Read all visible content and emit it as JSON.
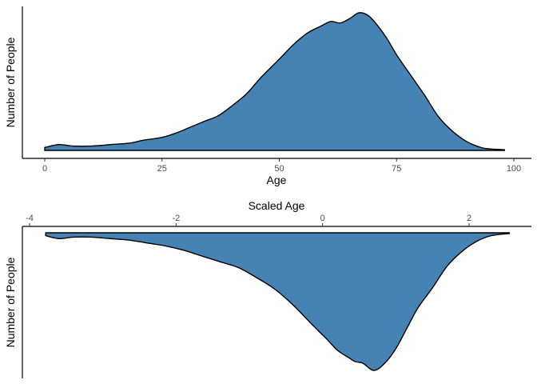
{
  "chart_data": [
    {
      "type": "area",
      "subtype": "density",
      "xlabel": "Age",
      "ylabel": "Number of People",
      "x_axis_position": "bottom",
      "xlim": [
        0,
        100
      ],
      "x_ticks": [
        0,
        25,
        50,
        75,
        100
      ],
      "y_ticks": [],
      "grid": false,
      "fill_color": "#4682B4",
      "outline_color": "#000000",
      "series": [
        {
          "x": [
            0,
            3,
            6,
            10,
            14,
            18,
            21,
            25,
            28,
            31,
            34,
            37,
            40,
            43,
            46,
            50,
            53,
            56,
            59,
            61,
            63,
            65,
            67,
            69,
            71,
            73,
            75,
            78,
            81,
            84,
            87,
            90,
            93,
            95,
            98
          ],
          "values": [
            0.02,
            0.04,
            0.03,
            0.03,
            0.04,
            0.05,
            0.07,
            0.09,
            0.12,
            0.16,
            0.2,
            0.24,
            0.31,
            0.39,
            0.5,
            0.63,
            0.73,
            0.81,
            0.86,
            0.89,
            0.88,
            0.91,
            0.95,
            0.93,
            0.86,
            0.77,
            0.66,
            0.52,
            0.38,
            0.23,
            0.13,
            0.06,
            0.02,
            0.01,
            0.005
          ]
        }
      ]
    },
    {
      "type": "area",
      "subtype": "density",
      "xlabel": "Scaled Age",
      "ylabel": "Number of People",
      "x_axis_position": "top",
      "y_reversed": true,
      "xlim": [
        -3.75,
        2.55
      ],
      "x_ticks": [
        -4,
        -2,
        0,
        2
      ],
      "y_ticks": [],
      "grid": false,
      "fill_color": "#4682B4",
      "outline_color": "#000000",
      "series": [
        {
          "x": [
            -3.78,
            -3.6,
            -3.4,
            -3.15,
            -2.9,
            -2.65,
            -2.4,
            -2.15,
            -1.9,
            -1.65,
            -1.4,
            -1.15,
            -0.9,
            -0.65,
            -0.4,
            -0.15,
            0.05,
            0.2,
            0.35,
            0.45,
            0.55,
            0.7,
            0.85,
            1.0,
            1.15,
            1.3,
            1.5,
            1.7,
            1.9,
            2.1,
            2.3,
            2.55
          ],
          "values": [
            0.02,
            0.04,
            0.03,
            0.03,
            0.04,
            0.05,
            0.07,
            0.09,
            0.12,
            0.16,
            0.2,
            0.24,
            0.31,
            0.39,
            0.5,
            0.63,
            0.73,
            0.81,
            0.86,
            0.89,
            0.9,
            0.95,
            0.9,
            0.8,
            0.66,
            0.52,
            0.38,
            0.23,
            0.13,
            0.06,
            0.02,
            0.005
          ]
        }
      ]
    }
  ]
}
